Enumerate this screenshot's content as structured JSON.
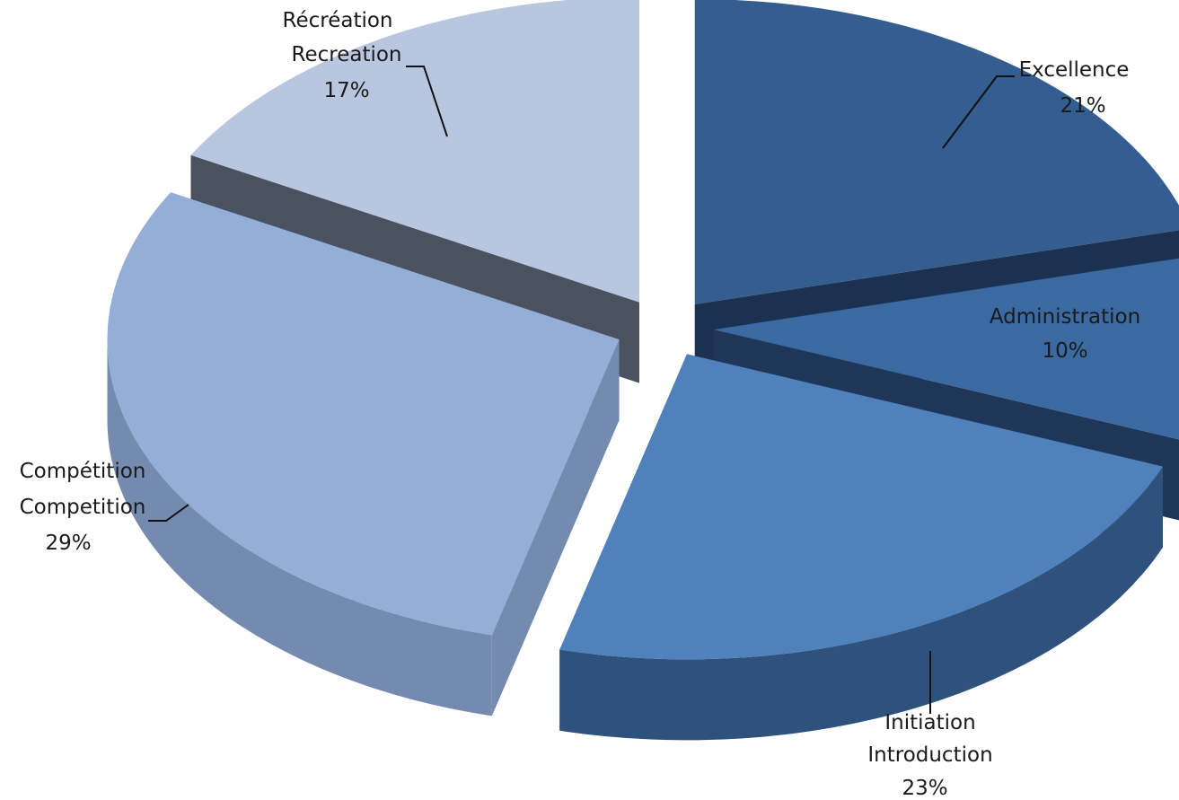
{
  "chart_data": {
    "type": "pie",
    "variant": "3d-exploded",
    "slices": [
      {
        "label_fr": "Excellence",
        "label_en": "",
        "value": 21,
        "pct": "21%",
        "color": "#335e8f"
      },
      {
        "label_fr": "Administration",
        "label_en": "",
        "value": 10,
        "pct": "10%",
        "color": "#3a6aa1"
      },
      {
        "label_fr": "Initiation",
        "label_en": "Introduction",
        "value": 23,
        "pct": "23%",
        "color": "#4f81bd"
      },
      {
        "label_fr": "Compétition",
        "label_en": "Competition",
        "value": 29,
        "pct": "29%",
        "color": "#95aed8"
      },
      {
        "label_fr": "Récréation",
        "label_en": "Recreation",
        "value": 17,
        "pct": "17%",
        "color": "#b8c6e0"
      }
    ],
    "side_colors": [
      "#1c3150",
      "#1f3658",
      "#2f527c",
      "#748aaf",
      "#4a525f"
    ],
    "title": "",
    "legend": "none"
  }
}
